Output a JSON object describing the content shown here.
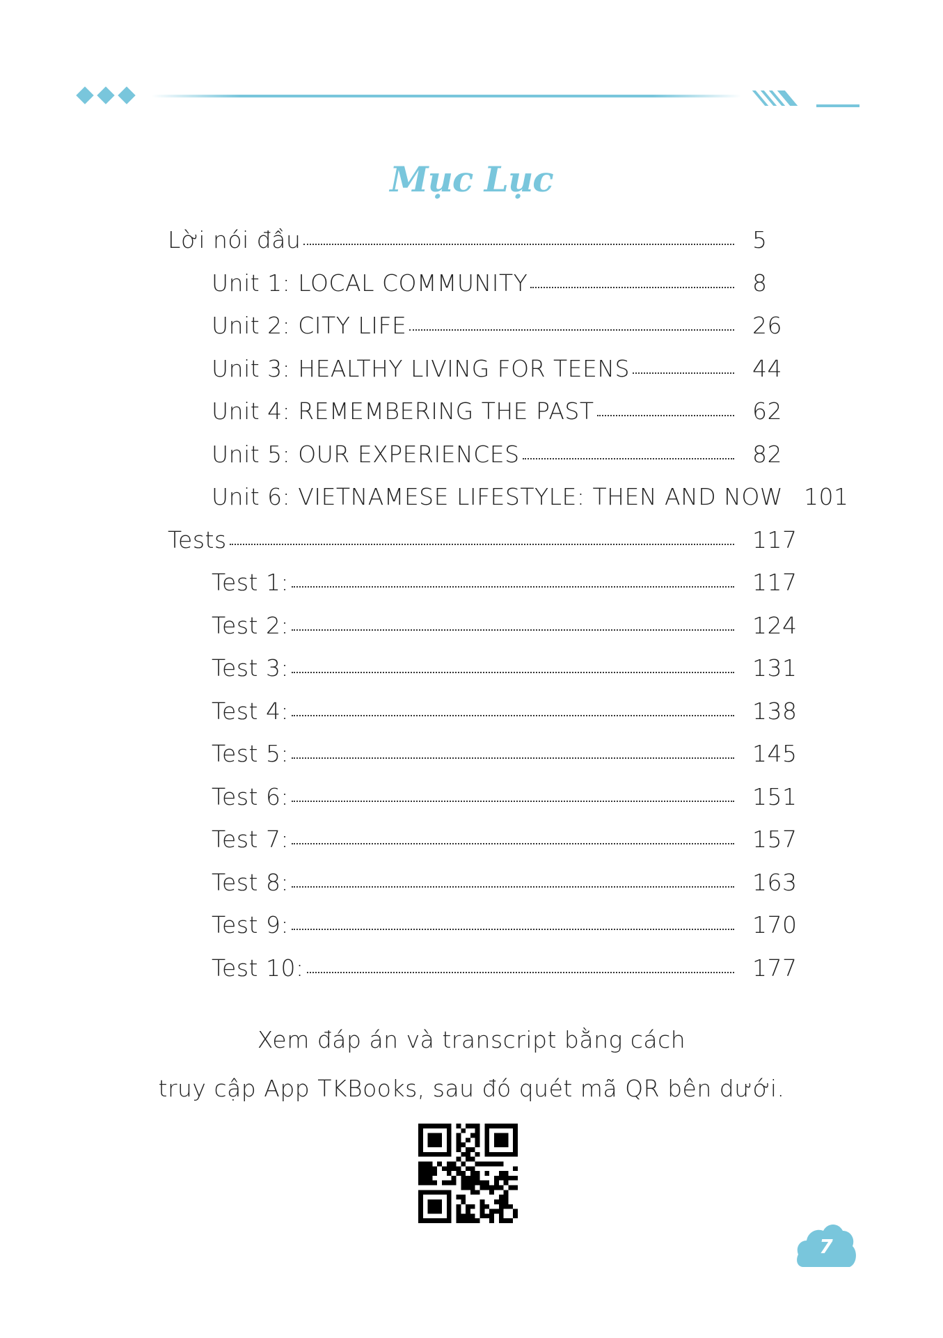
{
  "accent_color": "#79c6dc",
  "title": "Mục Lục",
  "toc": [
    {
      "label": "Lời nói đầu",
      "page": "5",
      "level": 0
    },
    {
      "label": "Unit 1: LOCAL COMMUNITY",
      "page": "8",
      "level": 1
    },
    {
      "label": "Unit 2: CITY LIFE",
      "page": "26",
      "level": 1
    },
    {
      "label": "Unit 3: HEALTHY LIVING FOR TEENS",
      "page": "44",
      "level": 1
    },
    {
      "label": "Unit 4: REMEMBERING THE PAST",
      "page": "62",
      "level": 1
    },
    {
      "label": "Unit 5: OUR EXPERIENCES",
      "page": "82",
      "level": 1
    },
    {
      "label": "Unit 6: VIETNAMESE LIFESTYLE: THEN AND NOW",
      "page": "101",
      "level": 1
    },
    {
      "label": "Tests",
      "page": "117",
      "level": 0
    },
    {
      "label": "Test 1:",
      "page": "117",
      "level": 1
    },
    {
      "label": "Test 2:",
      "page": "124",
      "level": 1
    },
    {
      "label": "Test 3:",
      "page": "131",
      "level": 1
    },
    {
      "label": "Test 4:",
      "page": "138",
      "level": 1
    },
    {
      "label": "Test 5:",
      "page": "145",
      "level": 1
    },
    {
      "label": "Test 6:",
      "page": "151",
      "level": 1
    },
    {
      "label": "Test 7:",
      "page": "157",
      "level": 1
    },
    {
      "label": "Test 8:",
      "page": "163",
      "level": 1
    },
    {
      "label": "Test 9:",
      "page": "170",
      "level": 1
    },
    {
      "label": "Test 10:",
      "page": "177",
      "level": 1
    }
  ],
  "footer": {
    "line1": "Xem đáp án và transcript bằng cách",
    "line2": "truy cập App TKBooks, sau đó quét mã QR bên dưới."
  },
  "qr_icon": "qr-code",
  "page_number": "7"
}
